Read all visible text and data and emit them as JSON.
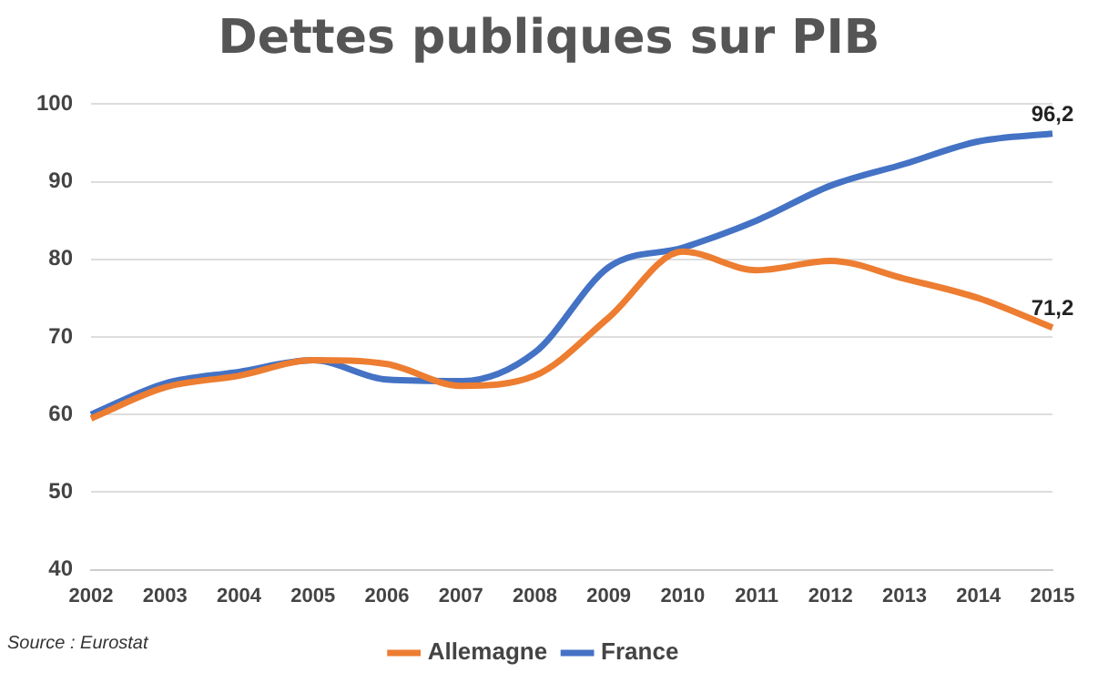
{
  "chart_data": {
    "type": "line",
    "title": "Dettes publiques sur PIB",
    "categories": [
      "2002",
      "2003",
      "2004",
      "2005",
      "2006",
      "2007",
      "2008",
      "2009",
      "2010",
      "2011",
      "2012",
      "2013",
      "2014",
      "2015"
    ],
    "series": [
      {
        "name": "Allemagne",
        "color": "#ed7d31",
        "values": [
          59.5,
          63.5,
          65,
          67,
          66.5,
          63.7,
          65,
          72.5,
          81,
          78.6,
          79.8,
          77.5,
          75,
          71.2
        ],
        "value_labels": [
          null,
          null,
          null,
          null,
          null,
          null,
          null,
          null,
          null,
          null,
          null,
          null,
          null,
          "71,2"
        ]
      },
      {
        "name": "France",
        "color": "#4472c4",
        "values": [
          60,
          64,
          65.5,
          67,
          64.5,
          64.3,
          68,
          79,
          81.5,
          85,
          89.5,
          92.3,
          95.2,
          96.2
        ],
        "value_labels": [
          null,
          null,
          null,
          null,
          null,
          null,
          null,
          null,
          null,
          null,
          null,
          null,
          null,
          "96,2"
        ]
      }
    ],
    "ylim": [
      40,
      100
    ],
    "yticks": [
      40,
      50,
      60,
      70,
      80,
      90,
      100
    ],
    "grid": "y",
    "legend": "bottom",
    "marker": "none",
    "line_style": "solid",
    "annotations": [
      "Source : Eurostat"
    ]
  }
}
